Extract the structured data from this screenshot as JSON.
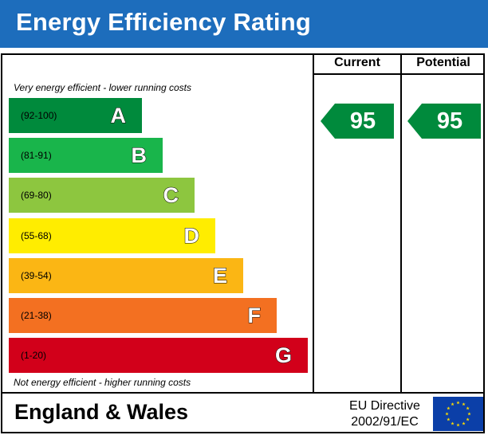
{
  "header": {
    "title": "Energy Efficiency Rating"
  },
  "columns": {
    "current": "Current",
    "potential": "Potential"
  },
  "notes": {
    "top": "Very energy efficient - lower running costs",
    "bottom": "Not energy efficient - higher running costs"
  },
  "chart_data": {
    "type": "bar",
    "title": "Energy Efficiency Rating",
    "bands": [
      {
        "letter": "A",
        "range": "(92-100)",
        "color": "#008a3c"
      },
      {
        "letter": "B",
        "range": "(81-91)",
        "color": "#19b54b"
      },
      {
        "letter": "C",
        "range": "(69-80)",
        "color": "#8dc63f"
      },
      {
        "letter": "D",
        "range": "(55-68)",
        "color": "#ffed00"
      },
      {
        "letter": "E",
        "range": "(39-54)",
        "color": "#fbb614"
      },
      {
        "letter": "F",
        "range": "(21-38)",
        "color": "#f37021"
      },
      {
        "letter": "G",
        "range": "(1-20)",
        "color": "#d2001a"
      }
    ],
    "current": {
      "value": "95",
      "band": "A"
    },
    "potential": {
      "value": "95",
      "band": "A"
    }
  },
  "footer": {
    "region": "England & Wales",
    "directive_line1": "EU Directive",
    "directive_line2": "2002/91/EC",
    "flag_icon": "eu-flag-icon"
  }
}
